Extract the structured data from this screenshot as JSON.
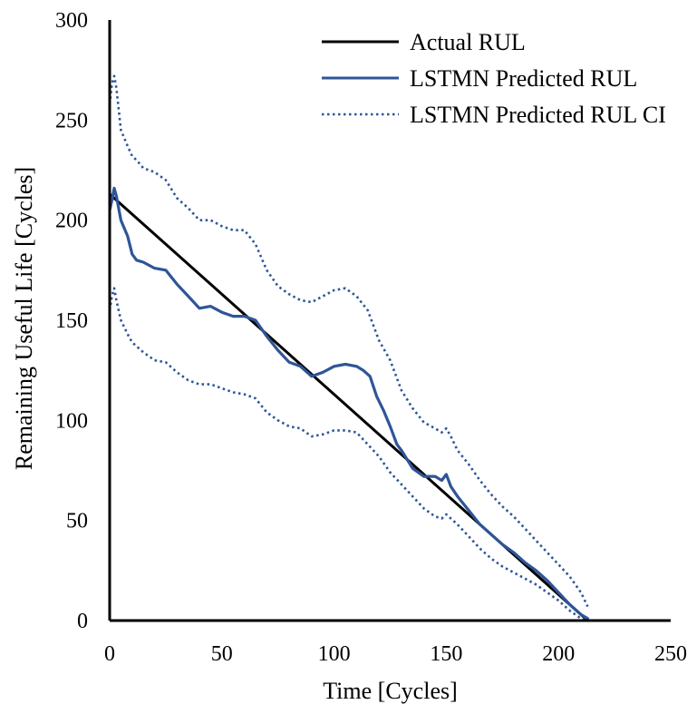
{
  "chart_data": {
    "type": "line",
    "title": "",
    "xlabel": "Time [Cycles]",
    "ylabel": "Remaining Useful Life [Cycles]",
    "xlim": [
      0,
      250
    ],
    "ylim": [
      0,
      300
    ],
    "xticks": [
      0,
      50,
      100,
      150,
      200,
      250
    ],
    "yticks": [
      0,
      50,
      100,
      150,
      200,
      250,
      300
    ],
    "grid": false,
    "legend_position": "top-right",
    "series": [
      {
        "name": "Actual RUL",
        "style": "solid",
        "color": "#000000",
        "x": [
          0,
          213
        ],
        "y": [
          213,
          0
        ]
      },
      {
        "name": "LSTMN Predicted RUL",
        "style": "solid",
        "color": "#2f5597",
        "x": [
          0,
          1,
          2,
          3,
          5,
          8,
          10,
          12,
          15,
          20,
          25,
          30,
          35,
          40,
          45,
          50,
          55,
          60,
          65,
          70,
          75,
          80,
          85,
          90,
          95,
          100,
          105,
          110,
          113,
          116,
          119,
          122,
          125,
          128,
          130,
          135,
          140,
          145,
          148,
          150,
          152,
          155,
          160,
          165,
          170,
          175,
          180,
          185,
          190,
          195,
          200,
          205,
          210,
          213
        ],
        "y": [
          205,
          210,
          216,
          212,
          200,
          192,
          183,
          180,
          179,
          176,
          175,
          168,
          162,
          156,
          157,
          154,
          152,
          152,
          150,
          142,
          135,
          129,
          127,
          122,
          124,
          127,
          128,
          127,
          125,
          122,
          112,
          105,
          97,
          88,
          85,
          76,
          72,
          72,
          70,
          73,
          67,
          62,
          55,
          48,
          43,
          38,
          34,
          29,
          25,
          20,
          14,
          8,
          3,
          1
        ]
      },
      {
        "name": "LSTMN Predicted RUL CI",
        "style": "dotted",
        "color": "#2f5597",
        "bound": "upper",
        "x": [
          0,
          1,
          2,
          3,
          5,
          8,
          10,
          12,
          15,
          20,
          25,
          30,
          35,
          40,
          45,
          50,
          55,
          60,
          65,
          70,
          75,
          80,
          85,
          90,
          95,
          100,
          105,
          110,
          115,
          120,
          125,
          130,
          135,
          140,
          145,
          148,
          150,
          152,
          155,
          160,
          165,
          170,
          175,
          180,
          185,
          190,
          195,
          200,
          205,
          210,
          213
        ],
        "y": [
          258,
          268,
          272,
          266,
          245,
          237,
          232,
          230,
          226,
          224,
          220,
          211,
          206,
          200,
          200,
          197,
          195,
          195,
          188,
          175,
          167,
          163,
          160,
          159,
          162,
          165,
          166,
          162,
          155,
          140,
          130,
          115,
          106,
          99,
          96,
          94,
          96,
          92,
          85,
          78,
          70,
          63,
          57,
          52,
          46,
          40,
          34,
          28,
          22,
          14,
          7
        ]
      },
      {
        "name": "LSTMN Predicted RUL CI",
        "style": "dotted",
        "color": "#2f5597",
        "bound": "lower",
        "x": [
          0,
          1,
          2,
          3,
          5,
          8,
          10,
          12,
          15,
          20,
          25,
          30,
          35,
          40,
          45,
          50,
          55,
          60,
          65,
          70,
          75,
          80,
          85,
          90,
          95,
          100,
          105,
          110,
          115,
          120,
          125,
          130,
          135,
          140,
          145,
          148,
          150,
          152,
          155,
          160,
          165,
          170,
          175,
          180,
          185,
          190,
          195,
          200,
          205,
          210,
          213
        ],
        "y": [
          155,
          162,
          166,
          160,
          150,
          143,
          139,
          137,
          134,
          130,
          129,
          124,
          120,
          118,
          118,
          116,
          114,
          113,
          111,
          104,
          100,
          97,
          96,
          92,
          93,
          95,
          95,
          94,
          88,
          82,
          74,
          68,
          62,
          56,
          52,
          51,
          53,
          51,
          48,
          42,
          36,
          31,
          27,
          24,
          21,
          18,
          14,
          10,
          5,
          1,
          0
        ]
      }
    ],
    "legend": [
      {
        "label": "Actual RUL",
        "style": "solid",
        "color": "#000000"
      },
      {
        "label": "LSTMN Predicted RUL",
        "style": "solid",
        "color": "#2f5597"
      },
      {
        "label": "LSTMN Predicted RUL CI",
        "style": "dotted",
        "color": "#2f5597"
      }
    ]
  }
}
